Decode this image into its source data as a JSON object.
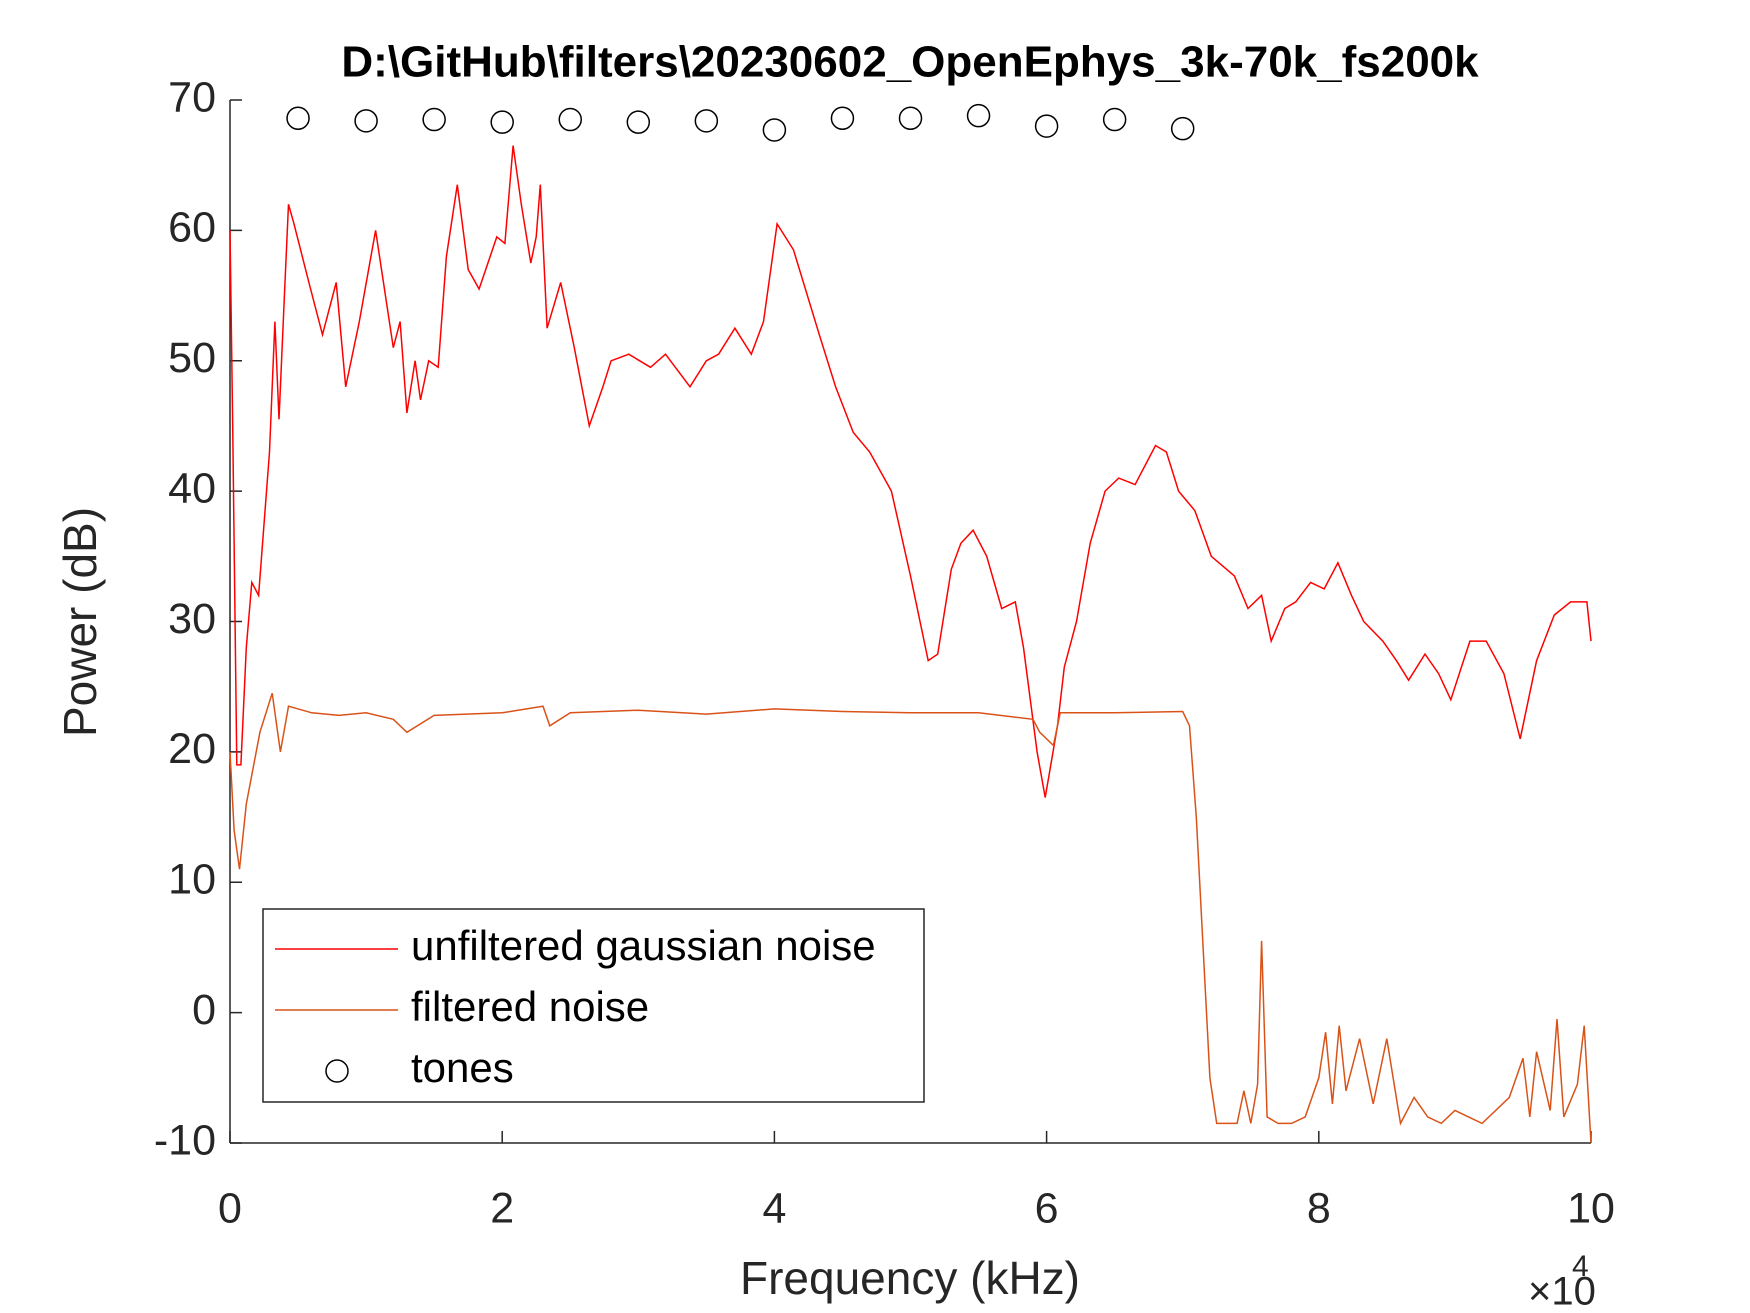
{
  "chart_data": {
    "type": "line",
    "title": "D:\\GitHub\\filters\\20230602_OpenEphys_3k-70k_fs200k",
    "x_label": "Frequency (kHz)",
    "y_label": "Power (dB)",
    "x_scale_label": "×10",
    "x_scale_exponent": "4",
    "xlim": [
      0,
      10
    ],
    "ylim": [
      -10,
      70
    ],
    "xticks": [
      0,
      2,
      4,
      6,
      8,
      10
    ],
    "yticks": [
      -10,
      0,
      10,
      20,
      30,
      40,
      50,
      60,
      70
    ],
    "grid": false,
    "legend_position": "lower left",
    "series": [
      {
        "name": "unfiltered gaussian noise",
        "color": "#ff0000",
        "line": "solid",
        "marker": "none",
        "x": [
          0,
          0.02,
          0.05,
          0.08,
          0.12,
          0.16,
          0.21,
          0.29,
          0.33,
          0.36,
          0.4,
          0.43,
          0.47,
          0.58,
          0.68,
          0.78,
          0.85,
          0.95,
          1.07,
          1.2,
          1.25,
          1.3,
          1.36,
          1.4,
          1.46,
          1.53,
          1.59,
          1.67,
          1.75,
          1.83,
          1.96,
          2.02,
          2.08,
          2.14,
          2.21,
          2.25,
          2.28,
          2.33,
          2.43,
          2.53,
          2.64,
          2.74,
          2.8,
          2.93,
          3.01,
          3.09,
          3.2,
          3.38,
          3.5,
          3.59,
          3.71,
          3.83,
          3.92,
          4.02,
          4.14,
          4.33,
          4.45,
          4.58,
          4.7,
          4.86,
          5.0,
          5.13,
          5.2,
          5.3,
          5.37,
          5.46,
          5.56,
          5.67,
          5.77,
          5.83,
          5.93,
          5.99,
          6.08,
          6.13,
          6.22,
          6.32,
          6.43,
          6.53,
          6.65,
          6.8,
          6.88,
          6.97,
          7.09,
          7.21,
          7.38,
          7.48,
          7.58,
          7.65,
          7.75,
          7.83,
          7.94,
          8.04,
          8.14,
          8.24,
          8.33,
          8.47,
          8.57,
          8.66,
          8.78,
          8.88,
          8.97,
          9.11,
          9.23,
          9.36,
          9.48,
          9.6,
          9.73,
          9.85,
          9.97,
          10.0
        ],
        "values": [
          60,
          45,
          19,
          19,
          28,
          33,
          32,
          43,
          53,
          45.5,
          55,
          62,
          60.5,
          56,
          52,
          56,
          48,
          53,
          60,
          51,
          53,
          46,
          50,
          47,
          50,
          49.5,
          58,
          63.5,
          57,
          55.5,
          59.5,
          59,
          66.5,
          62,
          57.5,
          59.5,
          63.5,
          52.5,
          56,
          51,
          45,
          48,
          50,
          50.5,
          50,
          49.5,
          50.5,
          48,
          50,
          50.5,
          52.5,
          50.5,
          53,
          60.5,
          58.5,
          52,
          48,
          44.5,
          43,
          40,
          33.5,
          27,
          27.5,
          34,
          36,
          37,
          35,
          31,
          31.5,
          28,
          20,
          16.5,
          22,
          26.5,
          30,
          36,
          40,
          41,
          40.5,
          43.5,
          43,
          40,
          38.5,
          35,
          33.5,
          31,
          32,
          28.5,
          31,
          31.5,
          33,
          32.5,
          34.5,
          32,
          30,
          28.5,
          27,
          25.5,
          27.5,
          26,
          24,
          28.5,
          28.5,
          26,
          21,
          27,
          30.5,
          31.5,
          31.5,
          28.5
        ]
      },
      {
        "name": "filtered noise",
        "color": "#d95319",
        "line": "solid",
        "marker": "none",
        "x": [
          0,
          0.03,
          0.07,
          0.12,
          0.22,
          0.31,
          0.37,
          0.43,
          0.6,
          0.8,
          1.0,
          1.2,
          1.3,
          1.5,
          2.0,
          2.3,
          2.35,
          2.5,
          3.0,
          3.5,
          4.0,
          4.5,
          5.0,
          5.5,
          5.9,
          5.95,
          6.05,
          6.1,
          6.5,
          7.0,
          7.05,
          7.1,
          7.2,
          7.25,
          7.4,
          7.45,
          7.5,
          7.55,
          7.58,
          7.62,
          7.7,
          7.8,
          7.9,
          8.0,
          8.05,
          8.1,
          8.15,
          8.2,
          8.3,
          8.4,
          8.5,
          8.6,
          8.7,
          8.8,
          8.9,
          9.0,
          9.1,
          9.2,
          9.4,
          9.5,
          9.55,
          9.6,
          9.7,
          9.75,
          9.8,
          9.9,
          9.95,
          10.0
        ],
        "values": [
          20,
          14,
          11,
          16,
          21.5,
          24.5,
          20,
          23.5,
          23,
          22.8,
          23,
          22.5,
          21.5,
          22.8,
          23,
          23.5,
          22,
          23,
          23.2,
          22.9,
          23.3,
          23.1,
          23,
          23,
          22.5,
          21.5,
          20.5,
          23,
          23,
          23.1,
          22,
          15,
          -5,
          -8.5,
          -8.5,
          -6,
          -8.5,
          -5.5,
          5.5,
          -8,
          -8.5,
          -8.5,
          -8,
          -5,
          -1.5,
          -7,
          -1,
          -6,
          -2,
          -7,
          -2,
          -8.5,
          -6.5,
          -8,
          -8.5,
          -7.5,
          -8,
          -8.5,
          -6.5,
          -3.5,
          -8,
          -3,
          -7.5,
          -0.5,
          -8,
          -5.5,
          -1,
          -10
        ]
      },
      {
        "name": "tones",
        "color": "#000000",
        "line": "none",
        "marker": "circle",
        "x": [
          0.5,
          1.0,
          1.5,
          2.0,
          2.5,
          3.0,
          3.5,
          4.0,
          4.5,
          5.0,
          5.5,
          6.0,
          6.5,
          7.0
        ],
        "values": [
          68.6,
          68.4,
          68.5,
          68.3,
          68.5,
          68.3,
          68.4,
          67.7,
          68.6,
          68.6,
          68.8,
          68.0,
          68.5,
          67.8
        ]
      }
    ]
  }
}
